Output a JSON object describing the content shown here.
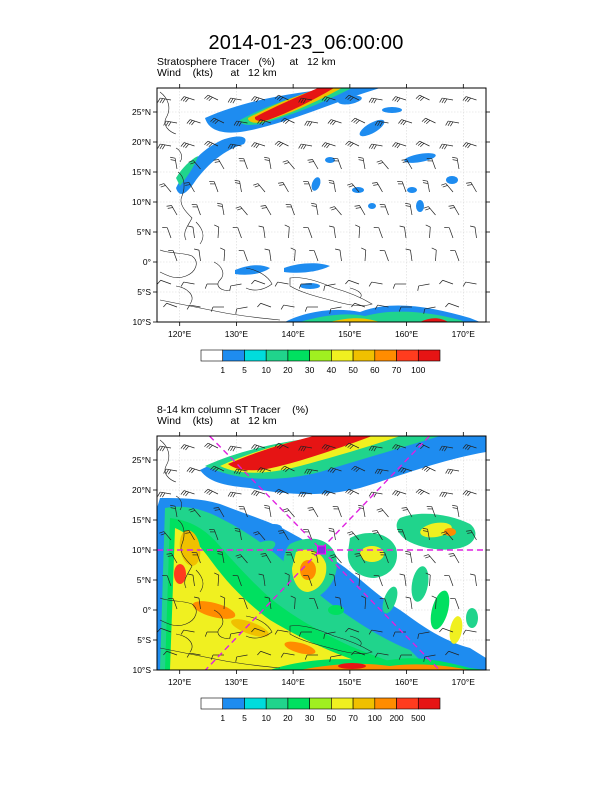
{
  "title": "2014-01-23_06:00:00",
  "panels": [
    {
      "id": "top",
      "subtitle_line1": "Stratosphere Tracer   (%)     at   12 km",
      "subtitle_line2": "Wind    (kts)      at   12 km",
      "lat_labels": [
        "25°N",
        "20°N",
        "15°N",
        "10°N",
        "5°N",
        "0°",
        "5°S",
        "10°S"
      ],
      "lon_labels": [
        "120°E",
        "130°E",
        "140°E",
        "150°E",
        "160°E",
        "170°E"
      ],
      "colorbar_labels": [
        "1",
        "5",
        "10",
        "20",
        "30",
        "40",
        "50",
        "60",
        "70",
        "100"
      ],
      "colorbar_colors": [
        "#ffffff",
        "#1e8cf0",
        "#00dcdc",
        "#20d48c",
        "#00e060",
        "#a0f020",
        "#f0f020",
        "#f0c000",
        "#ff8c00",
        "#ff3c1e",
        "#e61414"
      ],
      "cross_section": false
    },
    {
      "id": "bottom",
      "subtitle_line1": "8-14 km column ST Tracer    (%)",
      "subtitle_line2": "Wind    (kts)      at   12 km",
      "lat_labels": [
        "25°N",
        "20°N",
        "15°N",
        "10°N",
        "5°N",
        "0°",
        "5°S",
        "10°S"
      ],
      "lon_labels": [
        "120°E",
        "130°E",
        "140°E",
        "150°E",
        "160°E",
        "170°E"
      ],
      "colorbar_labels": [
        "1",
        "5",
        "10",
        "20",
        "30",
        "50",
        "70",
        "100",
        "200",
        "500"
      ],
      "colorbar_colors": [
        "#ffffff",
        "#1e8cf0",
        "#00dcdc",
        "#20d48c",
        "#00e060",
        "#a0f020",
        "#f0f020",
        "#f0c000",
        "#ff8c00",
        "#ff3c1e",
        "#e61414"
      ],
      "cross_section": true
    }
  ],
  "map": {
    "lon_range": [
      116,
      174
    ],
    "lat_range": [
      -10,
      29
    ],
    "cross_section_color": "#e020e0"
  }
}
